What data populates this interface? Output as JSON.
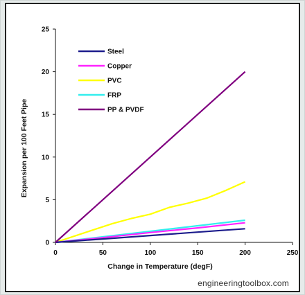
{
  "source_text": "engineeringtoolbox.com",
  "chart_data": {
    "type": "line",
    "xlabel": "Change in Temperature (degF)",
    "ylabel": "Expansion per 100 Feet Pipe",
    "xlim": [
      0,
      250
    ],
    "ylim": [
      0,
      25
    ],
    "xticks": [
      "0",
      "50",
      "100",
      "150",
      "200",
      "250"
    ],
    "yticks": [
      "0",
      "5",
      "10",
      "15",
      "20",
      "25"
    ],
    "grid": false,
    "legend_position": "top-left",
    "series": [
      {
        "name": "Steel",
        "color": "#1c1c8c",
        "x": [
          0,
          50,
          100,
          150,
          200
        ],
        "y": [
          0,
          0.4,
          0.8,
          1.2,
          1.6
        ]
      },
      {
        "name": "Copper",
        "color": "#ff22ff",
        "x": [
          0,
          50,
          100,
          150,
          200
        ],
        "y": [
          0,
          0.55,
          1.15,
          1.7,
          2.3
        ]
      },
      {
        "name": "PVC",
        "color": "#ffff00",
        "x": [
          0,
          30,
          60,
          80,
          100,
          120,
          140,
          160,
          180,
          200
        ],
        "y": [
          0,
          1.1,
          2.2,
          2.8,
          3.3,
          4.1,
          4.6,
          5.2,
          6.1,
          7.1
        ]
      },
      {
        "name": "FRP",
        "color": "#33eeee",
        "x": [
          0,
          50,
          100,
          150,
          200
        ],
        "y": [
          0,
          0.65,
          1.3,
          1.95,
          2.6
        ]
      },
      {
        "name": "PP & PVDF",
        "color": "#800080",
        "x": [
          0,
          50,
          100,
          150,
          200
        ],
        "y": [
          0,
          5,
          10,
          15,
          20
        ]
      }
    ]
  }
}
